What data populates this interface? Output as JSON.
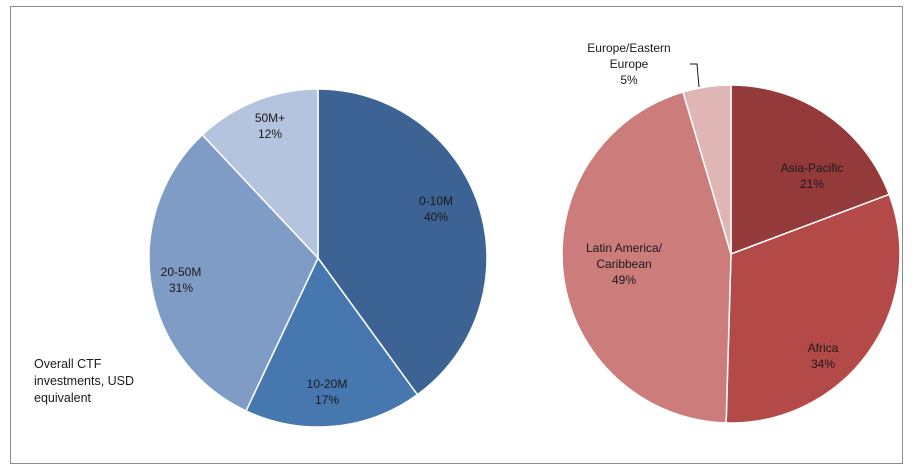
{
  "chart_data": [
    {
      "type": "pie",
      "title": "",
      "slices": [
        {
          "label": [
            "0-10M"
          ],
          "percent_label": "40%",
          "value": 40,
          "color": "#3c6393"
        },
        {
          "label": [
            "10-20M"
          ],
          "percent_label": "17%",
          "value": 17,
          "color": "#4677af"
        },
        {
          "label": [
            "20-50M"
          ],
          "percent_label": "31%",
          "value": 31,
          "color": "#7f9cc7"
        },
        {
          "label": [
            "50M+"
          ],
          "percent_label": "12%",
          "value": 12,
          "color": "#b5c4de"
        }
      ],
      "note_lines": [
        "Overall CTF",
        "investments, USD",
        "equivalent"
      ]
    },
    {
      "type": "pie",
      "title": "",
      "slices": [
        {
          "label": [
            "Asia-Pacific"
          ],
          "percent_label": "21%",
          "value": 21,
          "color": "#953a3a"
        },
        {
          "label": [
            "Africa"
          ],
          "percent_label": "34%",
          "value": 34,
          "color": "#b44a48"
        },
        {
          "label": [
            "Latin America/",
            "Caribbean"
          ],
          "percent_label": "49%",
          "value": 49,
          "color": "#cc7c7b"
        },
        {
          "label": [
            "Europe/Eastern",
            "Europe"
          ],
          "percent_label": "5%",
          "value": 5,
          "color": "#e0b5b5"
        }
      ]
    }
  ]
}
